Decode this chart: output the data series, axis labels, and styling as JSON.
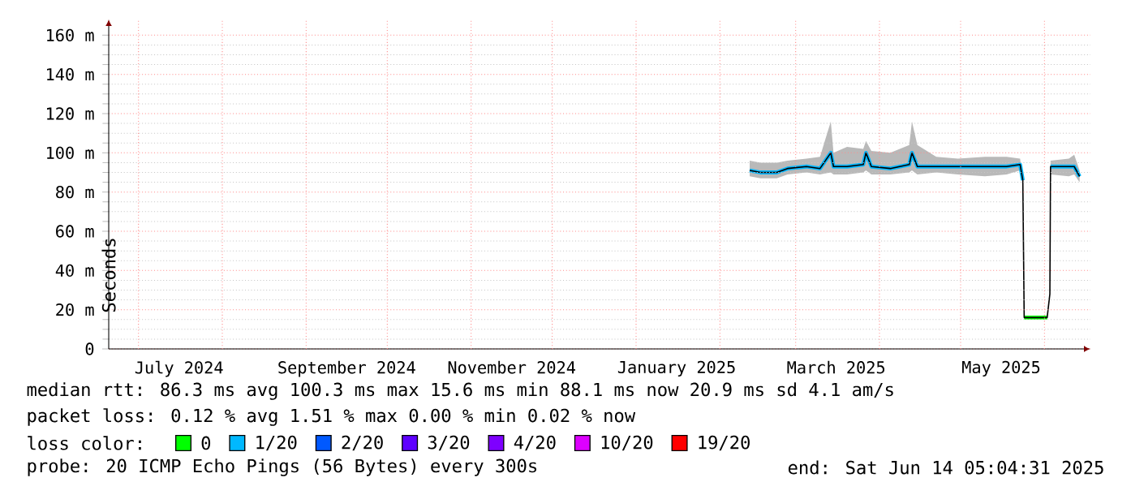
{
  "chart_data": {
    "type": "line",
    "ylabel": "Seconds",
    "xlim": [
      "2024-06-20",
      "2025-06-18"
    ],
    "ylim": [
      0,
      168
    ],
    "xticks": [
      {
        "value": "2024-07-01",
        "label": null
      },
      {
        "value": "2024-07-16",
        "label": "July 2024"
      },
      {
        "value": "2024-08-01",
        "label": null
      },
      {
        "value": "2024-09-01",
        "label": null
      },
      {
        "value": "2024-09-16",
        "label": "September 2024"
      },
      {
        "value": "2024-10-01",
        "label": null
      },
      {
        "value": "2024-11-01",
        "label": null
      },
      {
        "value": "2024-11-16",
        "label": "November 2024"
      },
      {
        "value": "2024-12-01",
        "label": null
      },
      {
        "value": "2025-01-01",
        "label": null
      },
      {
        "value": "2025-01-16",
        "label": "January 2025"
      },
      {
        "value": "2025-02-01",
        "label": null
      },
      {
        "value": "2025-03-01",
        "label": null
      },
      {
        "value": "2025-03-16",
        "label": "March 2025"
      },
      {
        "value": "2025-04-01",
        "label": null
      },
      {
        "value": "2025-05-01",
        "label": null
      },
      {
        "value": "2025-05-16",
        "label": "May 2025"
      },
      {
        "value": "2025-06-01",
        "label": null
      }
    ],
    "yticks": [
      0,
      {
        "value": 20,
        "label": "20 m"
      },
      {
        "value": 40,
        "label": "40 m"
      },
      {
        "value": 60,
        "label": "60 m"
      },
      {
        "value": 80,
        "label": "80 m"
      },
      {
        "value": 100,
        "label": "100 m"
      },
      {
        "value": 120,
        "label": "120 m"
      },
      {
        "value": 140,
        "label": "140 m"
      },
      {
        "value": 160,
        "label": "160 m"
      }
    ],
    "grid": true,
    "legend": "bottom",
    "legend_title": "loss color:",
    "series": [
      {
        "color": "#000000",
        "x": [
          "2025-02-12",
          "2025-02-16",
          "2025-02-22",
          "2025-02-26",
          "2025-03-05",
          "2025-03-10",
          "2025-03-14",
          "2025-03-15",
          "2025-03-20",
          "2025-03-26",
          "2025-03-27",
          "2025-03-29",
          "2025-04-05",
          "2025-04-12",
          "2025-04-13",
          "2025-04-15",
          "2025-04-22",
          "2025-04-30",
          "2025-05-10",
          "2025-05-18",
          "2025-05-23",
          "2025-05-24",
          "2025-05-24T12:00",
          "2025-06-02",
          "2025-06-03",
          "2025-06-03T06:00",
          "2025-06-10",
          "2025-06-12",
          "2025-06-14"
        ],
        "values": [
          91,
          90,
          90,
          92,
          93,
          92,
          100,
          93,
          93,
          94,
          100,
          93,
          92,
          94,
          100,
          93,
          93,
          93,
          93,
          93,
          94,
          86,
          16,
          16,
          28,
          93,
          93,
          93,
          88
        ],
        "lower": [
          88,
          87,
          87,
          89,
          90,
          89,
          90,
          89,
          89,
          90,
          91,
          89,
          89,
          90,
          91,
          89,
          90,
          89,
          88,
          89,
          91,
          86,
          16,
          16,
          28,
          89,
          88,
          89,
          85
        ],
        "upper": [
          96,
          95,
          95,
          96,
          97,
          98,
          116,
          100,
          103,
          102,
          106,
          101,
          100,
          104,
          116,
          104,
          98,
          97,
          98,
          98,
          97,
          86,
          16,
          16,
          28,
          96,
          97,
          99,
          91
        ]
      },
      {
        "name": "0",
        "color": "#00ff00",
        "x": [
          "2025-05-24T12:00",
          "2025-06-02"
        ],
        "values": [
          16,
          16
        ]
      },
      {
        "name": "1/20",
        "color": "#00b8ff",
        "x": [
          "2025-02-12",
          "2025-02-16",
          "2025-02-22",
          "2025-02-26",
          "2025-03-05",
          "2025-03-10",
          "2025-03-14",
          "2025-03-15",
          "2025-03-20",
          "2025-03-26",
          "2025-03-27",
          "2025-03-29",
          "2025-04-05",
          "2025-04-12",
          "2025-04-13",
          "2025-04-15",
          "2025-04-22",
          "2025-04-30",
          "2025-05-10",
          "2025-05-18",
          "2025-05-23",
          "2025-05-24",
          "2025-06-01",
          "2025-06-03T06:00",
          "2025-06-10",
          "2025-06-12",
          "2025-06-14"
        ],
        "values": [
          91,
          90,
          90,
          92,
          93,
          92,
          100,
          93,
          93,
          94,
          100,
          93,
          92,
          94,
          100,
          93,
          93,
          93,
          93,
          93,
          94,
          86,
          null,
          93,
          93,
          93,
          88
        ]
      },
      {
        "name": "2/20",
        "color": "#0059ff"
      },
      {
        "name": "3/20",
        "color": "#5e00ff"
      },
      {
        "name": "4/20",
        "color": "#7e00ff"
      },
      {
        "name": "10/20",
        "color": "#dd00ff"
      },
      {
        "name": "19/20",
        "color": "#ff0000"
      }
    ],
    "annotations": [
      "median rtt:  86.3 ms avg  100.3 ms max  15.6 ms min  88.1 ms now  20.9 ms sd  4.1   am/s",
      "packet loss: 0.12 % avg  1.51 % max  0.00 % min  0.02 % now",
      "probe:       20 ICMP Echo Pings (56 Bytes) every 300s",
      "end: Sat Jun 14 05:04:31 2025"
    ]
  }
}
